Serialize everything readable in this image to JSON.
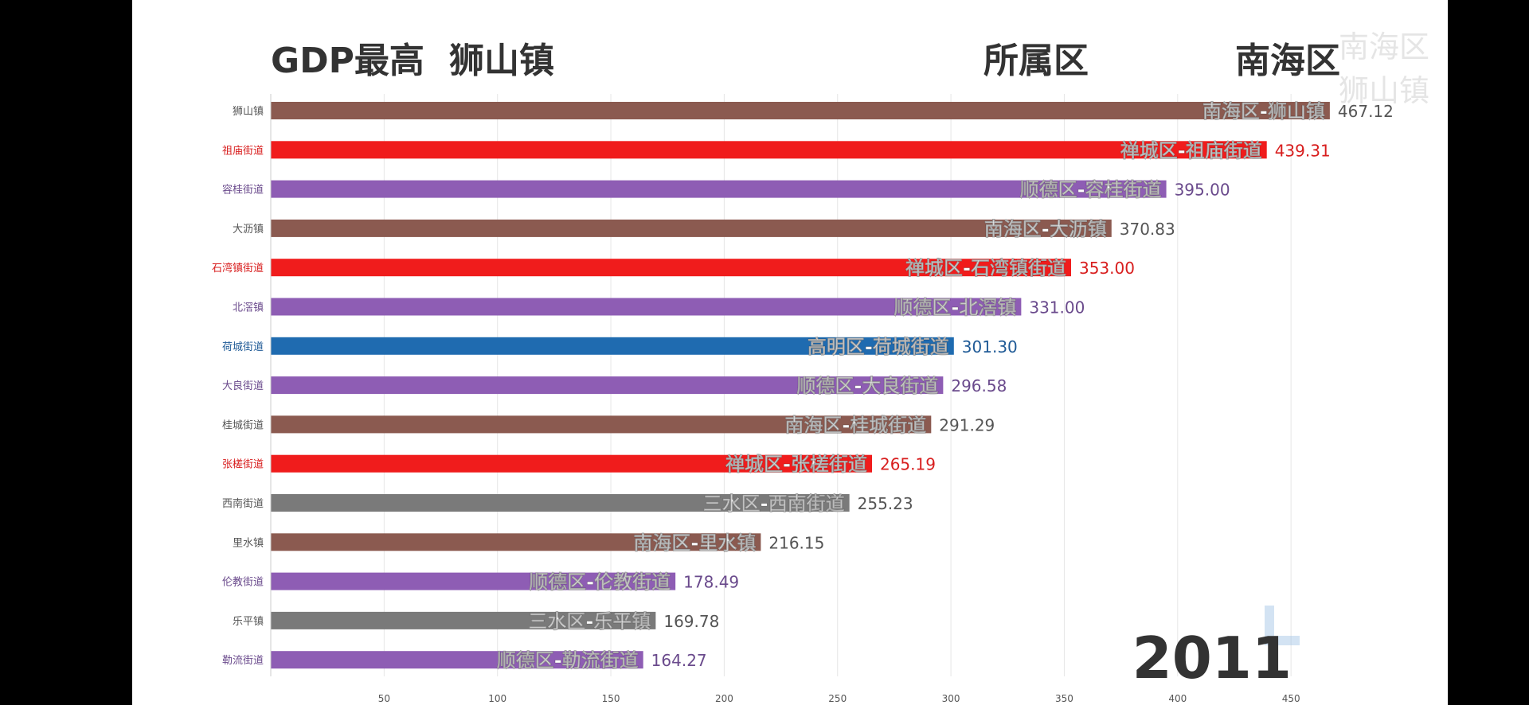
{
  "header": {
    "gdp_label": "GDP最高",
    "top_town": "狮山镇",
    "district_label": "所属区",
    "top_district": "南海区"
  },
  "watermark": "南海区狮山镇",
  "year": "2011",
  "colors": {
    "南海区": "#8B5A50",
    "禅城区": "#F01C1C",
    "顺德区": "#8E5DB4",
    "高明区": "#1F6BB0",
    "三水区": "#7A7A7A"
  },
  "chart_data": {
    "type": "bar",
    "orientation": "horizontal",
    "title": "GDP最高 狮山镇",
    "xlim": [
      0,
      470
    ],
    "xticks": [
      50,
      100,
      150,
      200,
      250,
      300,
      350,
      400,
      450
    ],
    "bars": [
      {
        "category": "狮山镇",
        "district": "南海区",
        "label": "南海区-狮山镇",
        "value": 467.12,
        "value_text": "467.12"
      },
      {
        "category": "祖庙街道",
        "district": "禅城区",
        "label": "禅城区-祖庙街道",
        "value": 439.31,
        "value_text": "439.31"
      },
      {
        "category": "容桂街道",
        "district": "顺德区",
        "label": "顺德区-容桂街道",
        "value": 395.0,
        "value_text": "395.00"
      },
      {
        "category": "大沥镇",
        "district": "南海区",
        "label": "南海区-大沥镇",
        "value": 370.83,
        "value_text": "370.83"
      },
      {
        "category": "石湾镇街道",
        "district": "禅城区",
        "label": "禅城区-石湾镇街道",
        "value": 353.0,
        "value_text": "353.00"
      },
      {
        "category": "北滘镇",
        "district": "顺德区",
        "label": "顺德区-北滘镇",
        "value": 331.0,
        "value_text": "331.00"
      },
      {
        "category": "荷城街道",
        "district": "高明区",
        "label": "高明区-荷城街道",
        "value": 301.3,
        "value_text": "301.30"
      },
      {
        "category": "大良街道",
        "district": "顺德区",
        "label": "顺德区-大良街道",
        "value": 296.58,
        "value_text": "296.58"
      },
      {
        "category": "桂城街道",
        "district": "南海区",
        "label": "南海区-桂城街道",
        "value": 291.29,
        "value_text": "291.29"
      },
      {
        "category": "张槎街道",
        "district": "禅城区",
        "label": "禅城区-张槎街道",
        "value": 265.19,
        "value_text": "265.19"
      },
      {
        "category": "西南街道",
        "district": "三水区",
        "label": "三水区-西南街道",
        "value": 255.23,
        "value_text": "255.23"
      },
      {
        "category": "里水镇",
        "district": "南海区",
        "label": "南海区-里水镇",
        "value": 216.15,
        "value_text": "216.15"
      },
      {
        "category": "伦教街道",
        "district": "顺德区",
        "label": "顺德区-伦教街道",
        "value": 178.49,
        "value_text": "178.49"
      },
      {
        "category": "乐平镇",
        "district": "三水区",
        "label": "三水区-乐平镇",
        "value": 169.78,
        "value_text": "169.78"
      },
      {
        "category": "勒流街道",
        "district": "顺德区",
        "label": "顺德区-勒流街道",
        "value": 164.27,
        "value_text": "164.27"
      }
    ]
  }
}
